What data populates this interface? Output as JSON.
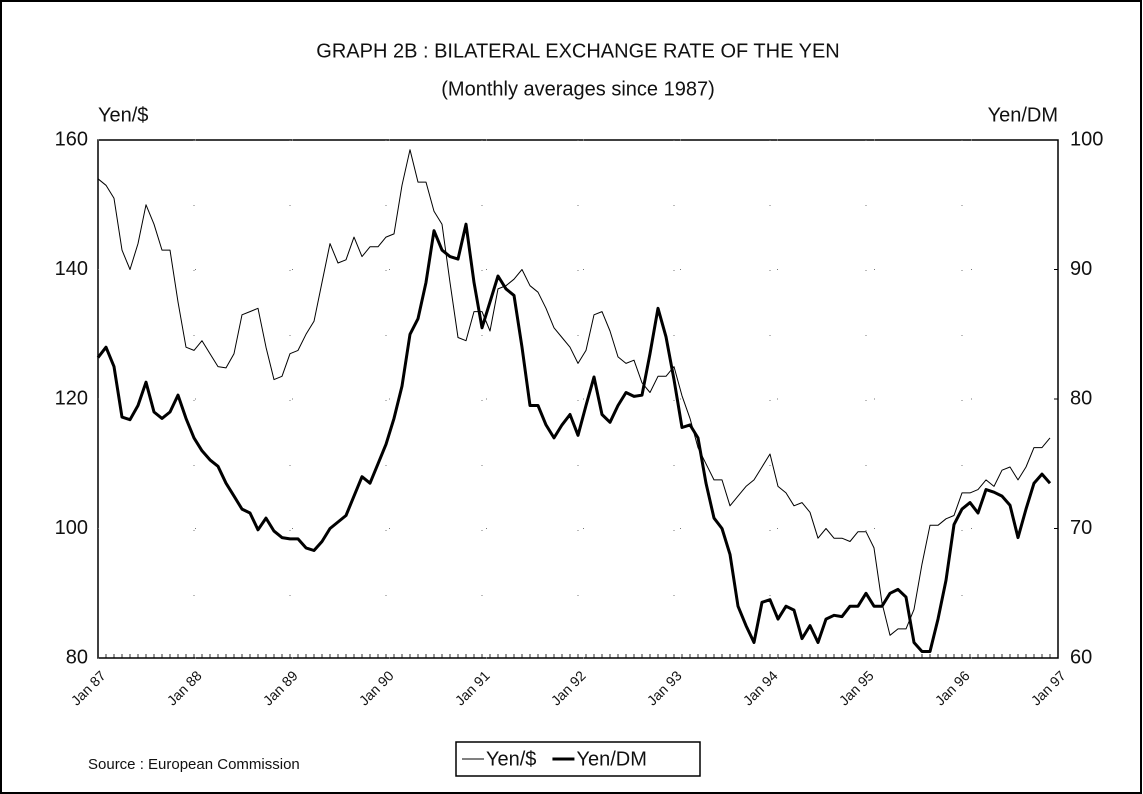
{
  "chart_data": {
    "type": "line",
    "title": "GRAPH 2B : BILATERAL EXCHANGE RATE OF THE YEN",
    "subtitle": "(Monthly averages since 1987)",
    "y_label": "Yen/$",
    "y2_label": "Yen/DM",
    "source": "Source :  European Commission",
    "categories": [
      "Jan 87",
      null,
      null,
      null,
      null,
      null,
      null,
      null,
      null,
      null,
      null,
      null,
      "Jan 88",
      null,
      null,
      null,
      null,
      null,
      null,
      null,
      null,
      null,
      null,
      null,
      "Jan 89",
      null,
      null,
      null,
      null,
      null,
      null,
      null,
      null,
      null,
      null,
      null,
      "Jan 90",
      null,
      null,
      null,
      null,
      null,
      null,
      null,
      null,
      null,
      null,
      null,
      "Jan 91",
      null,
      null,
      null,
      null,
      null,
      null,
      null,
      null,
      null,
      null,
      null,
      "Jan 92",
      null,
      null,
      null,
      null,
      null,
      null,
      null,
      null,
      null,
      null,
      null,
      "Jan 93",
      null,
      null,
      null,
      null,
      null,
      null,
      null,
      null,
      null,
      null,
      null,
      "Jan 94",
      null,
      null,
      null,
      null,
      null,
      null,
      null,
      null,
      null,
      null,
      null,
      "Jan 95",
      null,
      null,
      null,
      null,
      null,
      null,
      null,
      null,
      null,
      null,
      null,
      "Jan 96",
      null,
      null,
      null,
      null,
      null,
      null,
      null,
      null,
      null,
      null,
      null,
      "Jan 97"
    ],
    "series": [
      {
        "name": "Yen/$",
        "color": "#000000",
        "line_width": 1,
        "axis": "y",
        "values": [
          154,
          153,
          151,
          143,
          140,
          144,
          150,
          147,
          143,
          143,
          135,
          128,
          127.5,
          129,
          127,
          125,
          124.8,
          127,
          133,
          133.5,
          134,
          128,
          123,
          123.5,
          127,
          127.5,
          130,
          132,
          138,
          144,
          141,
          141.5,
          145,
          142,
          143.5,
          143.5,
          145,
          145.5,
          153,
          158.5,
          153.5,
          153.5,
          149,
          147,
          138,
          129.5,
          129,
          133.5,
          133.5,
          130.5,
          137,
          137.5,
          138.5,
          140,
          137.5,
          136.5,
          134,
          131,
          129.5,
          128,
          125.5,
          127.5,
          133,
          133.5,
          130.5,
          126.5,
          125.5,
          126,
          122.5,
          121,
          123.5,
          123.5,
          125,
          120.5,
          117,
          112.5,
          110,
          107.5,
          107.5,
          103.5,
          105,
          106.5,
          107.5,
          109.5,
          111.5,
          106.5,
          105.5,
          103.5,
          104,
          102.5,
          98.5,
          100,
          98.5,
          98.5,
          98,
          99.5,
          99.5,
          97,
          88.5,
          83.5,
          84.5,
          84.5,
          87.5,
          94.5,
          100.5,
          100.5,
          101.5,
          102,
          105.5,
          105.5,
          106,
          107.5,
          106.5,
          109,
          109.5,
          107.5,
          109.5,
          112.5,
          112.5,
          114,
          null
        ]
      },
      {
        "name": "Yen/DM",
        "color": "#000000",
        "line_width": 3,
        "axis": "y2",
        "values": [
          83.2,
          84,
          82.5,
          78.6,
          78.4,
          79.5,
          81.3,
          79,
          78.5,
          79,
          80.3,
          78.5,
          77,
          76,
          75.3,
          74.8,
          73.5,
          72.5,
          71.5,
          71.2,
          69.9,
          70.8,
          69.8,
          69.3,
          69.2,
          69.2,
          68.5,
          68.3,
          69,
          70,
          70.5,
          71,
          72.5,
          74,
          73.5,
          75,
          76.5,
          78.5,
          81,
          85,
          86.2,
          89,
          93,
          91.5,
          91,
          90.8,
          93.5,
          89,
          85.5,
          87.5,
          89.5,
          88.5,
          88,
          84,
          79.5,
          79.5,
          78,
          77,
          78,
          78.8,
          77.2,
          79.5,
          81.7,
          78.8,
          78.2,
          79.5,
          80.5,
          80.2,
          80.3,
          83.5,
          87,
          84.8,
          81.5,
          77.8,
          78,
          77,
          73.5,
          70.8,
          70,
          68,
          64,
          62.5,
          61.2,
          64.3,
          64.5,
          63,
          64,
          63.7,
          61.5,
          62.5,
          61.2,
          63,
          63.3,
          63.2,
          64,
          64,
          65,
          64,
          64,
          65,
          65.3,
          64.7,
          61.2,
          60.5,
          60.5,
          63,
          66,
          70.3,
          71.5,
          72,
          71.2,
          73,
          72.8,
          72.5,
          71.8,
          69.3,
          71.5,
          73.5,
          74.2,
          73.5,
          null
        ]
      }
    ],
    "ylim": [
      80,
      160
    ],
    "yticks": [
      80,
      100,
      120,
      140,
      160
    ],
    "y2lim": [
      60,
      100
    ],
    "y2ticks": [
      60,
      70,
      80,
      90,
      100
    ],
    "grid": true
  }
}
